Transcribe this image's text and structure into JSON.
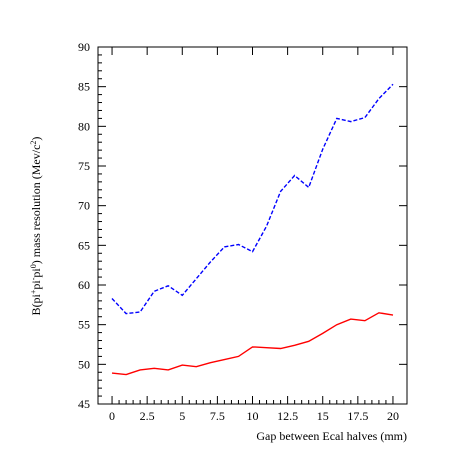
{
  "chart_data": {
    "type": "line",
    "xlabel": "Gap between Ecal halves (mm)",
    "ylabel": {
      "parts": [
        {
          "t": "B(pi",
          "sup": false
        },
        {
          "t": "+",
          "sup": true
        },
        {
          "t": "pi",
          "sup": false
        },
        {
          "t": "-",
          "sup": true
        },
        {
          "t": "pi",
          "sup": false
        },
        {
          "t": "0",
          "sup": true
        },
        {
          "t": ") mass resolution (Mev/c",
          "sup": false
        },
        {
          "t": "2",
          "sup": true
        },
        {
          "t": ")",
          "sup": false
        }
      ]
    },
    "xlim": [
      -1,
      21
    ],
    "ylim": [
      45,
      90
    ],
    "xticks": [
      0,
      2.5,
      5,
      7.5,
      10,
      12.5,
      15,
      17.5,
      20
    ],
    "xtick_labels": [
      "0",
      "2.5",
      "5",
      "7.5",
      "10",
      "12.5",
      "15",
      "17.5",
      "20"
    ],
    "yticks": [
      45,
      50,
      55,
      60,
      65,
      70,
      75,
      80,
      85,
      90
    ],
    "ytick_labels": [
      "45",
      "50",
      "55",
      "60",
      "65",
      "70",
      "75",
      "80",
      "85",
      "90"
    ],
    "grid": false,
    "series": [
      {
        "color": "#0000ff",
        "dash": "dashed",
        "x": [
          0,
          1,
          2,
          3,
          4,
          5,
          6,
          7,
          8,
          9,
          10,
          11,
          12,
          13,
          14,
          15,
          16,
          17,
          18,
          19,
          20
        ],
        "values": [
          58.3,
          56.4,
          56.6,
          59.2,
          59.9,
          58.7,
          60.8,
          62.9,
          64.8,
          65.1,
          64.2,
          67.4,
          71.8,
          73.8,
          72.3,
          77.1,
          81.0,
          80.6,
          81.1,
          83.5,
          85.3
        ]
      },
      {
        "color": "#ff0000",
        "dash": "solid",
        "x": [
          0,
          1,
          2,
          3,
          4,
          5,
          6,
          7,
          8,
          9,
          10,
          11,
          12,
          13,
          14,
          15,
          16,
          17,
          18,
          19,
          20
        ],
        "values": [
          48.9,
          48.7,
          49.3,
          49.5,
          49.3,
          49.9,
          49.7,
          50.2,
          50.6,
          51.0,
          52.2,
          52.1,
          52.0,
          52.4,
          52.9,
          53.9,
          55.0,
          55.7,
          55.5,
          56.5,
          56.2
        ]
      }
    ]
  }
}
